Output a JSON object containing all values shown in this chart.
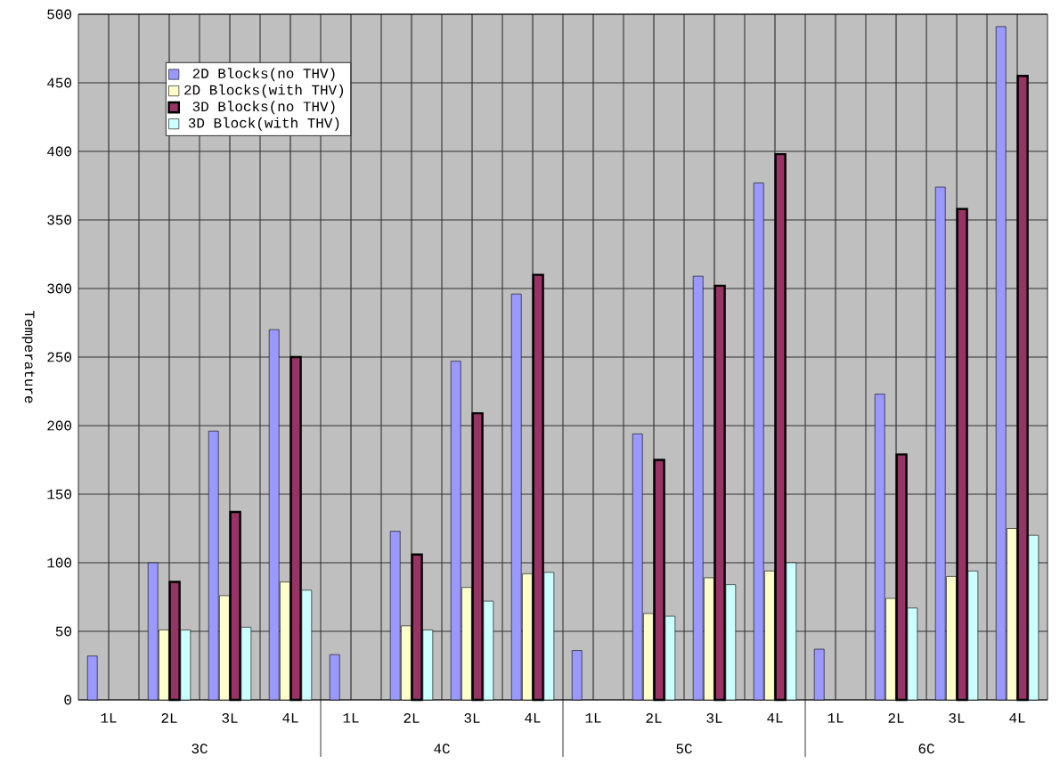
{
  "chart_data": {
    "type": "bar",
    "ylabel": "Temperature",
    "categories": [
      "1L",
      "2L",
      "3L",
      "4L",
      "1L",
      "2L",
      "3L",
      "4L",
      "1L",
      "2L",
      "3L",
      "4L",
      "1L",
      "2L",
      "3L",
      "4L"
    ],
    "series": [
      {
        "name": "2D Blocks(no THV)",
        "color": "#9999ff",
        "values": [
          32,
          100,
          196,
          270,
          33,
          123,
          247,
          296,
          36,
          194,
          309,
          377,
          37,
          223,
          374,
          491
        ]
      },
      {
        "name": "2D Blocks(with THV)",
        "color": "#ffffcc",
        "values": [
          null,
          51,
          76,
          86,
          null,
          54,
          82,
          92,
          null,
          63,
          89,
          94,
          null,
          74,
          90,
          125
        ]
      },
      {
        "name": "3D Blocks(no THV)",
        "color": "#993366",
        "values": [
          null,
          86,
          137,
          250,
          null,
          106,
          209,
          310,
          null,
          175,
          302,
          398,
          null,
          179,
          358,
          455
        ]
      },
      {
        "name": "3D Block(with THV)",
        "color": "#ccffff",
        "values": [
          null,
          51,
          53,
          80,
          null,
          51,
          72,
          93,
          null,
          61,
          84,
          100,
          null,
          67,
          94,
          120
        ]
      }
    ],
    "ylim": [
      0,
      500
    ],
    "yticks": [
      0,
      50,
      100,
      150,
      200,
      250,
      300,
      350,
      400,
      450,
      500
    ],
    "grid": true,
    "legend": "top left",
    "annotations": [
      "3C",
      "4C",
      "5C",
      "6C"
    ]
  }
}
